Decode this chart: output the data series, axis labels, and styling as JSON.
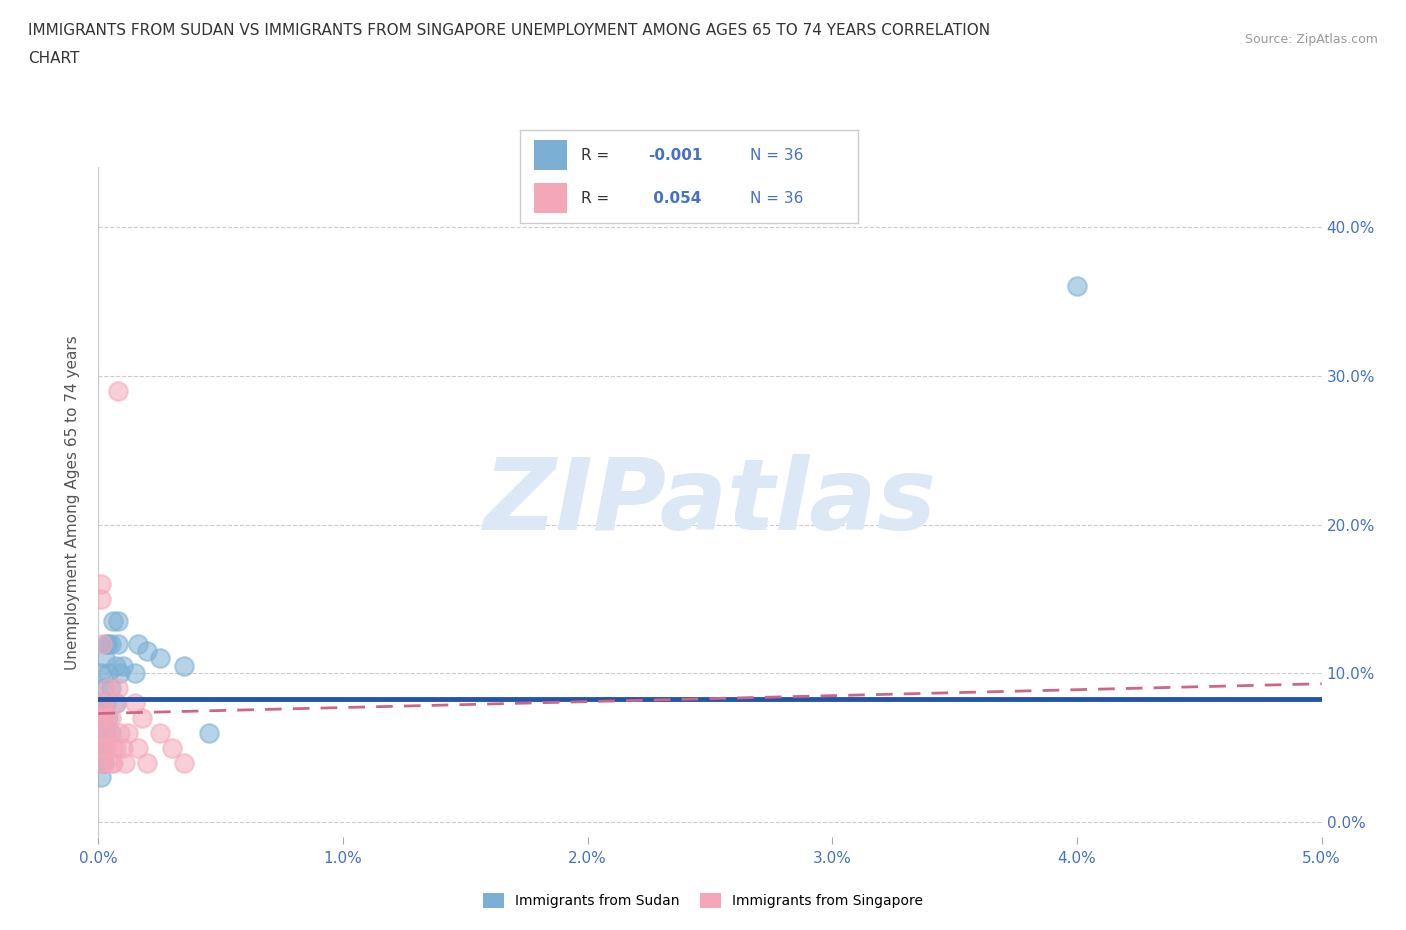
{
  "title_line1": "IMMIGRANTS FROM SUDAN VS IMMIGRANTS FROM SINGAPORE UNEMPLOYMENT AMONG AGES 65 TO 74 YEARS CORRELATION",
  "title_line2": "CHART",
  "source": "Source: ZipAtlas.com",
  "ylabel": "Unemployment Among Ages 65 to 74 years",
  "xlim": [
    0.0,
    0.05
  ],
  "ylim": [
    -0.01,
    0.44
  ],
  "xticks": [
    0.0,
    0.01,
    0.02,
    0.03,
    0.04,
    0.05
  ],
  "yticks": [
    0.0,
    0.1,
    0.2,
    0.3,
    0.4
  ],
  "r_sudan": -0.001,
  "n_sudan": 36,
  "r_singapore": 0.054,
  "n_singapore": 36,
  "color_sudan": "#7bafd4",
  "color_singapore": "#f4a7b9",
  "color_title": "#333333",
  "color_axis_blue": "#4472c4",
  "color_source": "#999999",
  "color_trendline_sudan": "#2255aa",
  "color_trendline_singapore": "#cc6688",
  "watermark_color": "#dce8f5",
  "background_color": "#ffffff",
  "sudan_x": [
    5e-05,
    0.0001,
    0.0001,
    0.00012,
    0.00015,
    0.00015,
    0.00017,
    0.0002,
    0.0002,
    0.00022,
    0.00022,
    0.00025,
    0.00025,
    0.0003,
    0.0003,
    0.0003,
    0.0004,
    0.0004,
    0.0004,
    0.0005,
    0.0005,
    0.0005,
    0.0006,
    0.0007,
    0.0007,
    0.0008,
    0.0008,
    0.0009,
    0.001,
    0.0015,
    0.0016,
    0.002,
    0.0025,
    0.0035,
    0.04,
    0.0045
  ],
  "sudan_y": [
    0.05,
    0.08,
    0.03,
    0.1,
    0.06,
    0.07,
    0.04,
    0.05,
    0.08,
    0.09,
    0.04,
    0.06,
    0.11,
    0.12,
    0.08,
    0.06,
    0.12,
    0.1,
    0.07,
    0.12,
    0.09,
    0.06,
    0.135,
    0.105,
    0.08,
    0.135,
    0.12,
    0.1,
    0.105,
    0.1,
    0.12,
    0.115,
    0.11,
    0.105,
    0.36,
    0.06
  ],
  "singapore_x": [
    3e-05,
    5e-05,
    7e-05,
    0.0001,
    0.0001,
    0.00012,
    0.00015,
    0.00015,
    0.00017,
    0.0002,
    0.0002,
    0.00022,
    0.00025,
    0.0003,
    0.0003,
    0.0004,
    0.0004,
    0.0005,
    0.0005,
    0.0006,
    0.0006,
    0.0007,
    0.0007,
    0.0008,
    0.0008,
    0.0009,
    0.001,
    0.0011,
    0.0012,
    0.0015,
    0.0016,
    0.0018,
    0.002,
    0.0025,
    0.003,
    0.0035
  ],
  "singapore_y": [
    0.05,
    0.07,
    0.04,
    0.06,
    0.15,
    0.16,
    0.08,
    0.12,
    0.07,
    0.05,
    0.08,
    0.04,
    0.06,
    0.07,
    0.05,
    0.09,
    0.06,
    0.04,
    0.07,
    0.05,
    0.04,
    0.08,
    0.05,
    0.29,
    0.09,
    0.06,
    0.05,
    0.04,
    0.06,
    0.08,
    0.05,
    0.07,
    0.04,
    0.06,
    0.05,
    0.04
  ],
  "trend_sudan_y0": 0.083,
  "trend_sudan_y1": 0.083,
  "trend_singapore_y0": 0.073,
  "trend_singapore_y1": 0.093
}
